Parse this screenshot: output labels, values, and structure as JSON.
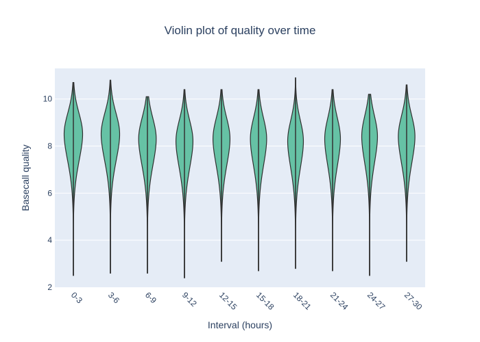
{
  "chart_data": {
    "type": "violin",
    "title": "Violin plot of quality over time",
    "xlabel": "Interval (hours)",
    "ylabel": "Basecall quality",
    "ylim": [
      2,
      11.3
    ],
    "yticks": [
      2,
      4,
      6,
      8,
      10
    ],
    "grid": true,
    "legend": "none",
    "colors": {
      "fill": "#66c2a5",
      "outline": "#2f2f2f",
      "plot_bg": "#e5ecf6",
      "text": "#2a3f5f"
    },
    "categories": [
      "0-3",
      "3-6",
      "6-9",
      "9-12",
      "12-15",
      "15-18",
      "18-21",
      "21-24",
      "24-27",
      "27-30"
    ],
    "violins": [
      {
        "category": "0-3",
        "min": 2.5,
        "max": 10.7,
        "median": 8.5,
        "width": 1.0
      },
      {
        "category": "3-6",
        "min": 2.6,
        "max": 10.8,
        "median": 8.5,
        "width": 1.0
      },
      {
        "category": "6-9",
        "min": 2.6,
        "max": 10.1,
        "median": 8.3,
        "width": 0.95
      },
      {
        "category": "9-12",
        "min": 2.4,
        "max": 10.4,
        "median": 8.2,
        "width": 0.92
      },
      {
        "category": "12-15",
        "min": 3.1,
        "max": 10.4,
        "median": 8.3,
        "width": 0.92
      },
      {
        "category": "15-18",
        "min": 2.7,
        "max": 10.4,
        "median": 8.3,
        "width": 0.88
      },
      {
        "category": "18-21",
        "min": 2.8,
        "max": 10.9,
        "median": 8.2,
        "width": 0.85
      },
      {
        "category": "21-24",
        "min": 2.7,
        "max": 10.4,
        "median": 8.3,
        "width": 0.85
      },
      {
        "category": "24-27",
        "min": 2.5,
        "max": 10.2,
        "median": 8.4,
        "width": 0.85
      },
      {
        "category": "27-30",
        "min": 3.1,
        "max": 10.6,
        "median": 8.4,
        "width": 0.9
      }
    ]
  }
}
